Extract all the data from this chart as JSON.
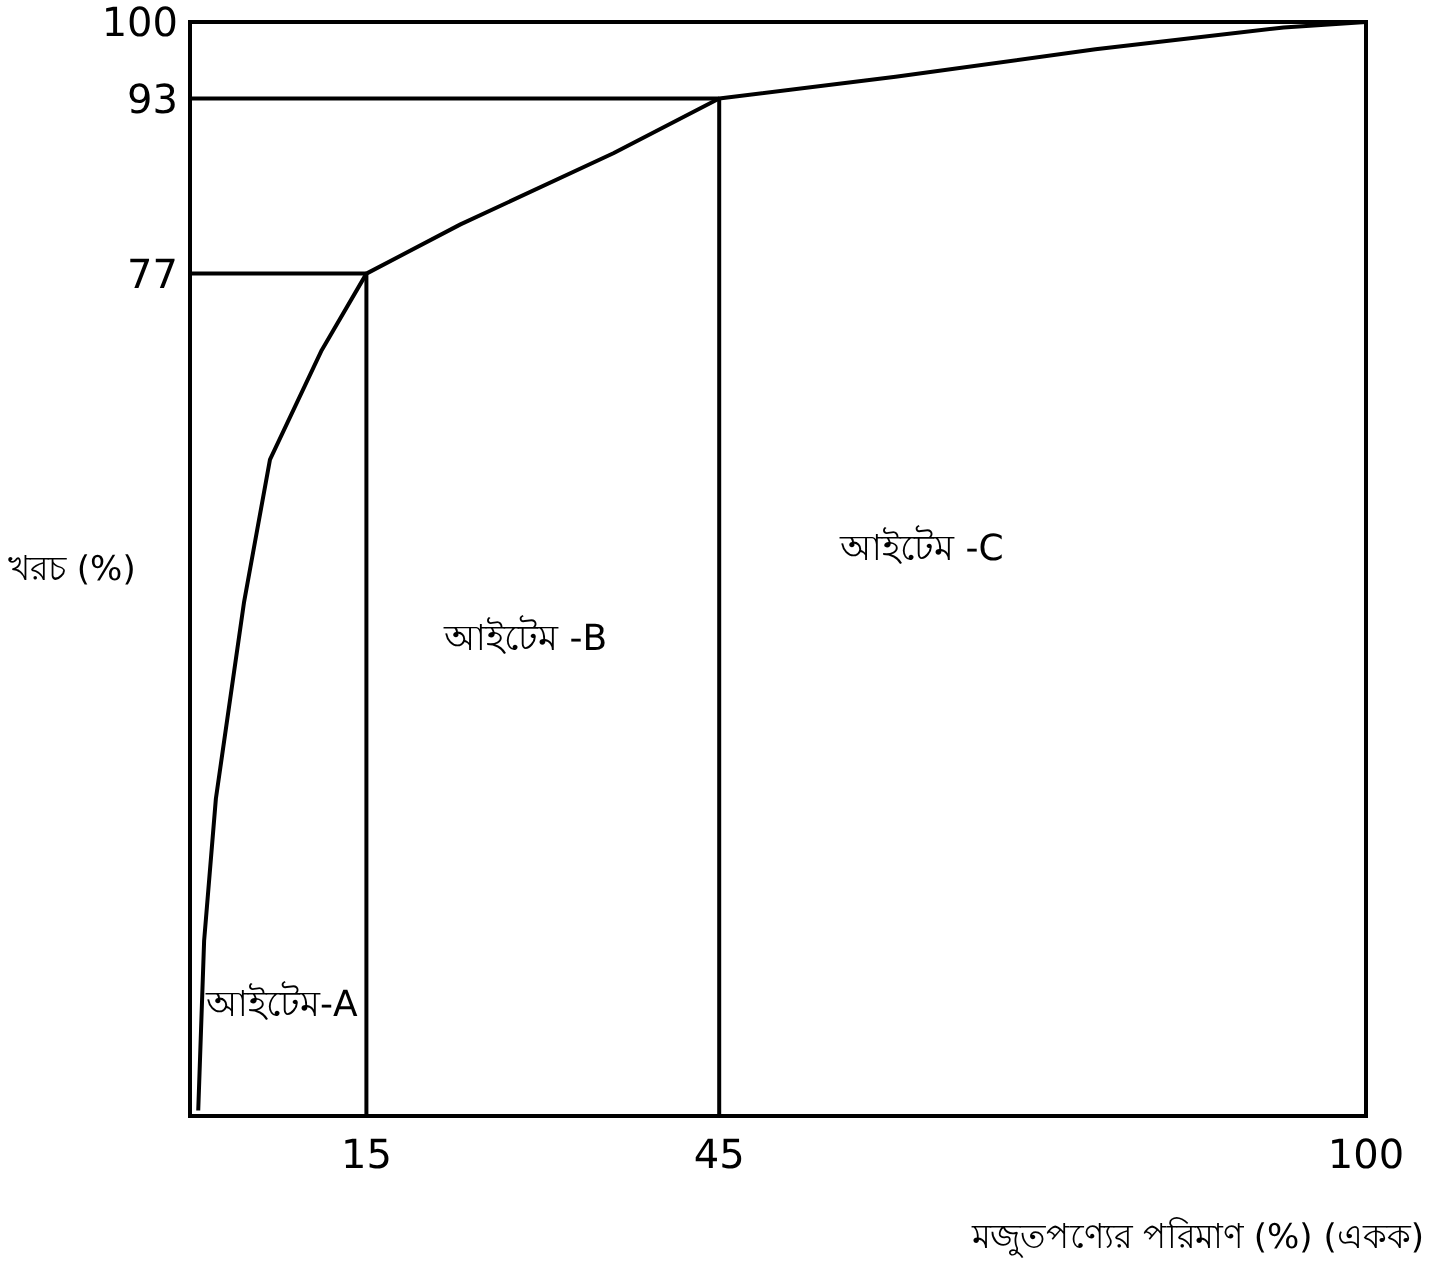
{
  "chart_data": {
    "type": "line",
    "xlabel": "মজুতপণ্যের পরিমাণ (%) (একক)",
    "ylabel": "খরচ (%)",
    "x": [
      0.7,
      1.2,
      2.2,
      4.6,
      6.8,
      11.2,
      15,
      23,
      36,
      45,
      60,
      77,
      93,
      100
    ],
    "series": [
      {
        "color": "#000000",
        "values": [
          0.5,
          16,
          29,
          47,
          60,
          70,
          77,
          81.5,
          88,
          93,
          95,
          97.5,
          99.5,
          100
        ]
      }
    ],
    "xlim": [
      0,
      100
    ],
    "ylim": [
      0,
      100
    ],
    "xticks": [
      15,
      45,
      100
    ],
    "yticks": [
      77,
      93,
      100
    ],
    "ref_lines": [
      {
        "axis": "x",
        "value": 15
      },
      {
        "axis": "x",
        "value": 45
      },
      {
        "axis": "y",
        "value": 77
      },
      {
        "axis": "y",
        "value": 93
      }
    ],
    "annotations": [
      "আইটেম-A",
      "আইটেম -B",
      "আইটেম -C"
    ],
    "grid": false,
    "marker": "none",
    "line_style": "solid"
  }
}
